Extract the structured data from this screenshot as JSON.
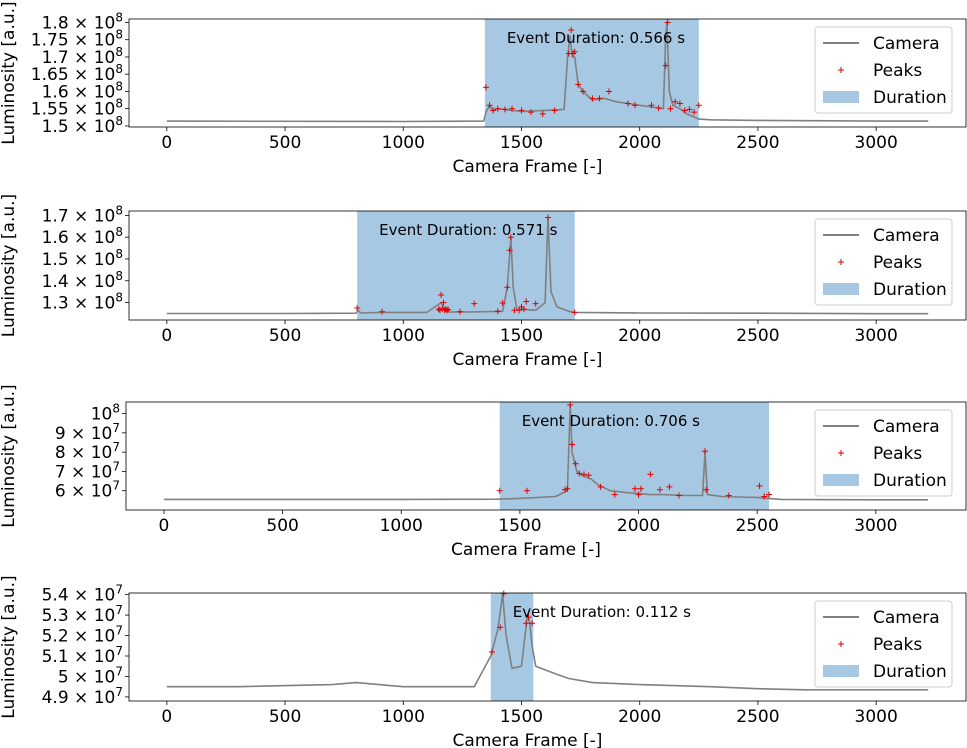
{
  "figure": {
    "legend_labels": {
      "camera": "Camera",
      "peaks": "Peaks",
      "duration": "Duration"
    },
    "colors": {
      "camera": "#808080",
      "peaks": "#e00000",
      "duration": "#a6c8e3",
      "axis": "#000000",
      "legend_frame": "#cccccc"
    }
  },
  "chart_data": [
    {
      "type": "line",
      "title": "",
      "annotation": "Event Duration: 0.566 s",
      "xlabel": "Camera Frame [-]",
      "ylabel": "Luminosity [a.u.]",
      "xlim": [
        -160,
        3380
      ],
      "ylim": [
        149700000.0,
        181000000.0
      ],
      "xticks": [
        0,
        500,
        1000,
        1500,
        2000,
        2500,
        3000
      ],
      "xtick_labels": [
        "0",
        "500",
        "1000",
        "1500",
        "2000",
        "2500",
        "3000"
      ],
      "yticks": [
        150000000.0,
        155000000.0,
        160000000.0,
        165000000.0,
        170000000.0,
        175000000.0,
        180000000.0
      ],
      "ytick_labels": [
        {
          "mant": "1.5",
          "exp": "8"
        },
        {
          "mant": "1.55",
          "exp": "8"
        },
        {
          "mant": "1.6",
          "exp": "8"
        },
        {
          "mant": "1.65",
          "exp": "8"
        },
        {
          "mant": "1.7",
          "exp": "8"
        },
        {
          "mant": "1.75",
          "exp": "8"
        },
        {
          "mant": "1.8",
          "exp": "8"
        }
      ],
      "legend": "top-right",
      "duration": [
        1345,
        2250
      ],
      "series": [
        {
          "name": "Camera",
          "x": [
            0,
            1000,
            1340,
            1350,
            1365,
            1380,
            1400,
            1500,
            1600,
            1680,
            1695,
            1705,
            1715,
            1725,
            1740,
            1760,
            1800,
            1850,
            1900,
            1950,
            2000,
            2050,
            2100,
            2110,
            2115,
            2125,
            2140,
            2170,
            2200,
            2250,
            2300,
            2500,
            3000,
            3220
          ],
          "y": [
            151400000.0,
            151300000.0,
            151400000.0,
            154000000.0,
            156000000.0,
            154500000.0,
            155000000.0,
            154200000.0,
            154500000.0,
            154800000.0,
            170000000.0,
            176000000.0,
            170000000.0,
            170000000.0,
            162000000.0,
            160000000.0,
            157500000.0,
            158000000.0,
            157000000.0,
            156500000.0,
            156000000.0,
            155500000.0,
            155000000.0,
            176000000.0,
            180000000.0,
            160000000.0,
            156000000.0,
            155000000.0,
            153500000.0,
            152000000.0,
            151800000.0,
            151600000.0,
            151400000.0,
            151400000.0
          ]
        },
        {
          "name": "Peaks",
          "x": [
            1350,
            1365,
            1380,
            1400,
            1430,
            1460,
            1500,
            1540,
            1590,
            1640,
            1700,
            1710,
            1718,
            1725,
            1740,
            1760,
            1800,
            1830,
            1870,
            1950,
            1980,
            2050,
            2080,
            2110,
            2118,
            2130,
            2150,
            2170,
            2190,
            2210,
            2230,
            2250
          ],
          "y": [
            161200000.0,
            156000000.0,
            154500000.0,
            155000000.0,
            154800000.0,
            155000000.0,
            154500000.0,
            154000000.0,
            153500000.0,
            154500000.0,
            171000000.0,
            177800000.0,
            171000000.0,
            171500000.0,
            162000000.0,
            160000000.0,
            158000000.0,
            158000000.0,
            160000000.0,
            156500000.0,
            156000000.0,
            156000000.0,
            155200000.0,
            167500000.0,
            180000000.0,
            155000000.0,
            157000000.0,
            156500000.0,
            154500000.0,
            154800000.0,
            154000000.0,
            156000000.0
          ]
        }
      ]
    },
    {
      "type": "line",
      "title": "",
      "annotation": "Event Duration: 0.571 s",
      "xlabel": "Camera Frame [-]",
      "ylabel": "Luminosity [a.u.]",
      "xlim": [
        -160,
        3380
      ],
      "ylim": [
        122000000.0,
        172000000.0
      ],
      "xticks": [
        0,
        500,
        1000,
        1500,
        2000,
        2500,
        3000
      ],
      "xtick_labels": [
        "0",
        "500",
        "1000",
        "1500",
        "2000",
        "2500",
        "3000"
      ],
      "yticks": [
        130000000.0,
        140000000.0,
        150000000.0,
        160000000.0,
        170000000.0
      ],
      "ytick_labels": [
        {
          "mant": "1.3",
          "exp": "8"
        },
        {
          "mant": "1.4",
          "exp": "8"
        },
        {
          "mant": "1.5",
          "exp": "8"
        },
        {
          "mant": "1.6",
          "exp": "8"
        },
        {
          "mant": "1.7",
          "exp": "8"
        }
      ],
      "legend": "top-right",
      "duration": [
        805,
        1725
      ],
      "series": [
        {
          "name": "Camera",
          "x": [
            0,
            500,
            800,
            810,
            820,
            900,
            1100,
            1160,
            1175,
            1190,
            1300,
            1420,
            1440,
            1455,
            1465,
            1480,
            1560,
            1600,
            1612,
            1625,
            1650,
            1700,
            1725,
            2000,
            2500,
            3000,
            3220
          ],
          "y": [
            125000000.0,
            125000000.0,
            125100000.0,
            126500000.0,
            125200000.0,
            125500000.0,
            125500000.0,
            130000000.0,
            126500000.0,
            125700000.0,
            125700000.0,
            126000000.0,
            137000000.0,
            160000000.0,
            137000000.0,
            127000000.0,
            126500000.0,
            130000000.0,
            169000000.0,
            135000000.0,
            128000000.0,
            126000000.0,
            125500000.0,
            125200000.0,
            125100000.0,
            124900000.0,
            124900000.0
          ]
        },
        {
          "name": "Peaks",
          "x": [
            805,
            910,
            1150,
            1155,
            1160,
            1165,
            1170,
            1175,
            1180,
            1185,
            1190,
            1240,
            1300,
            1400,
            1420,
            1440,
            1450,
            1455,
            1470,
            1490,
            1500,
            1510,
            1520,
            1560,
            1612,
            1725
          ],
          "y": [
            127500000.0,
            125800000.0,
            127000000.0,
            126500000.0,
            133500000.0,
            127200000.0,
            130000000.0,
            126500000.0,
            127000000.0,
            126500000.0,
            126800000.0,
            125800000.0,
            129500000.0,
            126000000.0,
            129800000.0,
            137000000.0,
            154000000.0,
            160000000.0,
            126500000.0,
            126500000.0,
            128000000.0,
            127000000.0,
            130500000.0,
            129500000.0,
            169000000.0,
            125500000.0
          ]
        }
      ]
    },
    {
      "type": "line",
      "title": "",
      "annotation": "Event Duration: 0.706 s",
      "xlabel": "Camera Frame [-]",
      "ylabel": "Luminosity [a.u.]",
      "xlim": [
        -160,
        3380
      ],
      "ylim": [
        50000000.0,
        106000000.0
      ],
      "xticks": [
        0,
        500,
        1000,
        1500,
        2000,
        2500,
        3000
      ],
      "xtick_labels": [
        "0",
        "500",
        "1000",
        "1500",
        "2000",
        "2500",
        "3000"
      ],
      "yticks": [
        60000000.0,
        70000000.0,
        80000000.0,
        90000000.0,
        100000000.0
      ],
      "ytick_labels": [
        {
          "mant": "6",
          "exp": "7"
        },
        {
          "mant": "7",
          "exp": "7"
        },
        {
          "mant": "8",
          "exp": "7"
        },
        {
          "mant": "9",
          "exp": "7"
        },
        {
          "mant": "",
          "exp": "8"
        }
      ],
      "legend": "top-right",
      "duration": [
        1415,
        2550
      ],
      "series": [
        {
          "name": "Camera",
          "x": [
            0,
            1000,
            1400,
            1500,
            1650,
            1700,
            1712,
            1720,
            1740,
            1760,
            1800,
            1830,
            1880,
            1950,
            2000,
            2050,
            2100,
            2200,
            2270,
            2280,
            2290,
            2350,
            2500,
            2550,
            2600,
            3000,
            3220
          ],
          "y": [
            55500000.0,
            55500000.0,
            55600000.0,
            56000000.0,
            57000000.0,
            60000000.0,
            104000000.0,
            80000000.0,
            70000000.0,
            68000000.0,
            66000000.0,
            63000000.0,
            60000000.0,
            59000000.0,
            58500000.0,
            58000000.0,
            58000000.0,
            57500000.0,
            57500000.0,
            80000000.0,
            58000000.0,
            57000000.0,
            56500000.0,
            56000000.0,
            55500000.0,
            55300000.0,
            55300000.0
          ]
        },
        {
          "name": "Peaks",
          "x": [
            1415,
            1530,
            1690,
            1700,
            1712,
            1720,
            1735,
            1750,
            1770,
            1790,
            1840,
            1900,
            1985,
            2000,
            2010,
            2050,
            2090,
            2130,
            2170,
            2280,
            2285,
            2380,
            2510,
            2530,
            2550
          ],
          "y": [
            60000000.0,
            60000000.0,
            60500000.0,
            61000000.0,
            104500000.0,
            84000000.0,
            74000000.0,
            69000000.0,
            68500000.0,
            68000000.0,
            62000000.0,
            58000000.0,
            61000000.0,
            58000000.0,
            61000000.0,
            68500000.0,
            60500000.0,
            62000000.0,
            57500000.0,
            80500000.0,
            60500000.0,
            57500000.0,
            62500000.0,
            57000000.0,
            58000000.0
          ]
        }
      ]
    },
    {
      "type": "line",
      "title": "",
      "annotation": "Event Duration: 0.112 s",
      "xlabel": "Camera Frame [-]",
      "ylabel": "Luminosity [a.u.]",
      "xlim": [
        -160,
        3380
      ],
      "ylim": [
        48800000.0,
        54080000.0
      ],
      "xticks": [
        0,
        500,
        1000,
        1500,
        2000,
        2500,
        3000
      ],
      "xtick_labels": [
        "0",
        "500",
        "1000",
        "1500",
        "2000",
        "2500",
        "3000"
      ],
      "yticks": [
        49000000.0,
        50000000.0,
        51000000.0,
        52000000.0,
        53000000.0,
        54000000.0
      ],
      "ytick_labels": [
        {
          "mant": "4.9",
          "exp": "7"
        },
        {
          "mant": "5",
          "exp": "7"
        },
        {
          "mant": "5.1",
          "exp": "7"
        },
        {
          "mant": "5.2",
          "exp": "7"
        },
        {
          "mant": "5.3",
          "exp": "7"
        },
        {
          "mant": "5.4",
          "exp": "7"
        }
      ],
      "legend": "top-right",
      "duration": [
        1370,
        1550
      ],
      "series": [
        {
          "name": "Camera",
          "x": [
            0,
            300,
            700,
            800,
            1000,
            1300,
            1370,
            1400,
            1420,
            1435,
            1460,
            1500,
            1525,
            1535,
            1545,
            1560,
            1650,
            1700,
            1800,
            2000,
            2300,
            2500,
            2700,
            3000,
            3220
          ],
          "y": [
            49500000.0,
            49500000.0,
            49600000.0,
            49700000.0,
            49500000.0,
            49500000.0,
            51000000.0,
            52300000.0,
            54000000.0,
            52000000.0,
            50400000.0,
            50500000.0,
            53000000.0,
            52600000.0,
            51500000.0,
            50500000.0,
            50100000.0,
            49900000.0,
            49700000.0,
            49600000.0,
            49500000.0,
            49400000.0,
            49350000.0,
            49350000.0,
            49350000.0
          ]
        },
        {
          "name": "Peaks",
          "x": [
            1375,
            1410,
            1425,
            1520,
            1530,
            1545
          ],
          "y": [
            51200000.0,
            52400000.0,
            54050000.0,
            52600000.0,
            52900000.0,
            52600000.0
          ]
        }
      ]
    }
  ]
}
